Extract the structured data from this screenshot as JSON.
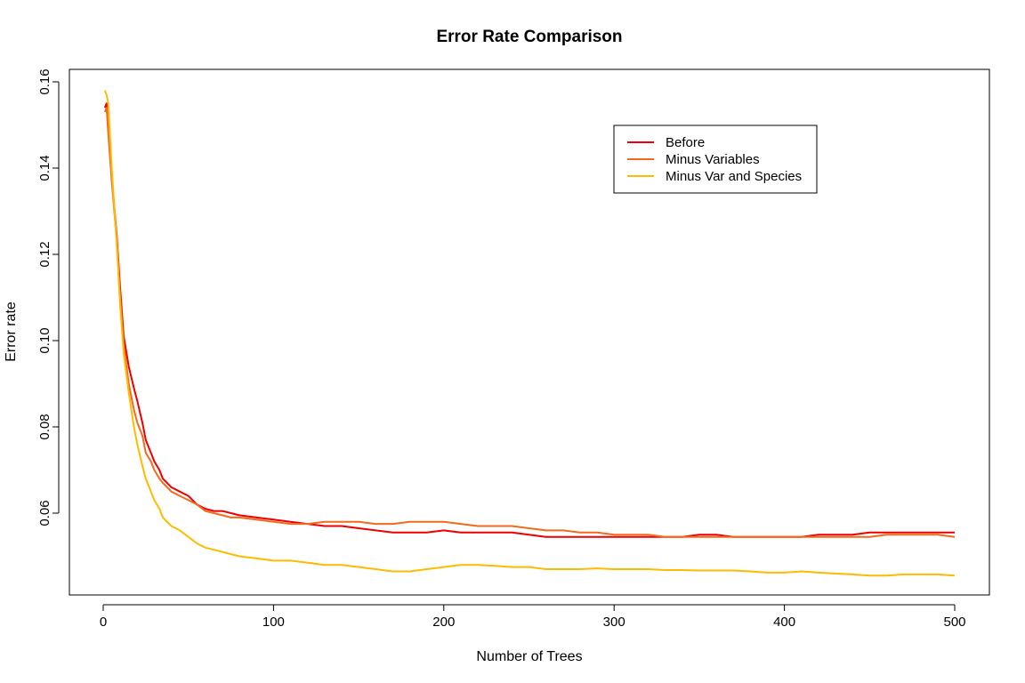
{
  "chart_data": {
    "type": "line",
    "title": "Error Rate Comparison",
    "xlabel": "Number of Trees",
    "ylabel": "Error rate",
    "xlim": [
      0,
      500
    ],
    "ylim": [
      0.044,
      0.161
    ],
    "xticks": [
      0,
      100,
      200,
      300,
      400,
      500
    ],
    "yticks": [
      0.06,
      0.08,
      0.1,
      0.12,
      0.14,
      0.16
    ],
    "xtick_labels": [
      "0",
      "100",
      "200",
      "300",
      "400",
      "500"
    ],
    "ytick_labels": [
      "0.06",
      "0.08",
      "0.10",
      "0.12",
      "0.14",
      "0.16"
    ],
    "grid": false,
    "legend_position": "top-right",
    "series": [
      {
        "name": "Before",
        "color": "#ee0000",
        "x": [
          1,
          2,
          3,
          5,
          8,
          10,
          12,
          15,
          18,
          20,
          23,
          25,
          28,
          30,
          33,
          35,
          40,
          45,
          50,
          55,
          60,
          65,
          70,
          75,
          80,
          90,
          100,
          110,
          120,
          130,
          140,
          150,
          160,
          170,
          180,
          190,
          200,
          210,
          220,
          230,
          240,
          250,
          260,
          270,
          280,
          290,
          300,
          310,
          320,
          330,
          340,
          350,
          360,
          370,
          380,
          390,
          400,
          410,
          420,
          430,
          440,
          450,
          460,
          470,
          480,
          490,
          500
        ],
        "y": [
          0.154,
          0.155,
          0.149,
          0.138,
          0.124,
          0.112,
          0.101,
          0.094,
          0.089,
          0.086,
          0.081,
          0.077,
          0.074,
          0.072,
          0.07,
          0.068,
          0.066,
          0.065,
          0.064,
          0.062,
          0.061,
          0.0605,
          0.0605,
          0.06,
          0.0595,
          0.059,
          0.0585,
          0.058,
          0.0575,
          0.057,
          0.057,
          0.0565,
          0.056,
          0.0555,
          0.0555,
          0.0555,
          0.056,
          0.0555,
          0.0555,
          0.0555,
          0.0555,
          0.055,
          0.0545,
          0.0545,
          0.0545,
          0.0545,
          0.0545,
          0.0545,
          0.0545,
          0.0545,
          0.0545,
          0.055,
          0.055,
          0.0545,
          0.0545,
          0.0545,
          0.0545,
          0.0545,
          0.055,
          0.055,
          0.055,
          0.0555,
          0.0555,
          0.0555,
          0.0555,
          0.0555,
          0.0555
        ]
      },
      {
        "name": "Minus Variables",
        "color": "#f26a1c",
        "x": [
          1,
          2,
          3,
          5,
          8,
          10,
          12,
          15,
          18,
          20,
          23,
          25,
          28,
          30,
          33,
          35,
          40,
          45,
          50,
          55,
          60,
          65,
          70,
          75,
          80,
          90,
          100,
          110,
          120,
          130,
          140,
          150,
          160,
          170,
          180,
          190,
          200,
          210,
          220,
          230,
          240,
          250,
          260,
          270,
          280,
          290,
          300,
          310,
          320,
          330,
          340,
          350,
          360,
          370,
          380,
          390,
          400,
          410,
          420,
          430,
          440,
          450,
          460,
          470,
          480,
          490,
          500
        ],
        "y": [
          0.153,
          0.154,
          0.148,
          0.137,
          0.123,
          0.11,
          0.099,
          0.09,
          0.084,
          0.081,
          0.078,
          0.074,
          0.072,
          0.07,
          0.068,
          0.067,
          0.065,
          0.064,
          0.063,
          0.062,
          0.0605,
          0.06,
          0.0595,
          0.059,
          0.059,
          0.0585,
          0.058,
          0.0575,
          0.0575,
          0.058,
          0.058,
          0.058,
          0.0575,
          0.0575,
          0.058,
          0.058,
          0.058,
          0.0575,
          0.057,
          0.057,
          0.057,
          0.0565,
          0.056,
          0.056,
          0.0555,
          0.0555,
          0.055,
          0.055,
          0.055,
          0.0545,
          0.0545,
          0.0545,
          0.0545,
          0.0545,
          0.0545,
          0.0545,
          0.0545,
          0.0545,
          0.0545,
          0.0545,
          0.0545,
          0.0545,
          0.055,
          0.055,
          0.055,
          0.055,
          0.0545
        ]
      },
      {
        "name": "Minus Var and Species",
        "color": "#ffbb00",
        "x": [
          1,
          2,
          3,
          5,
          8,
          10,
          12,
          15,
          18,
          20,
          23,
          25,
          28,
          30,
          33,
          35,
          40,
          45,
          50,
          55,
          60,
          65,
          70,
          75,
          80,
          90,
          100,
          110,
          120,
          130,
          140,
          150,
          160,
          170,
          180,
          190,
          200,
          210,
          220,
          230,
          240,
          250,
          260,
          270,
          280,
          290,
          300,
          310,
          320,
          330,
          340,
          350,
          360,
          370,
          380,
          390,
          400,
          410,
          420,
          430,
          440,
          450,
          460,
          470,
          480,
          490,
          500
        ],
        "y": [
          0.158,
          0.157,
          0.155,
          0.14,
          0.122,
          0.108,
          0.097,
          0.088,
          0.08,
          0.076,
          0.071,
          0.068,
          0.065,
          0.063,
          0.061,
          0.059,
          0.057,
          0.056,
          0.0545,
          0.053,
          0.052,
          0.0515,
          0.051,
          0.0505,
          0.05,
          0.0495,
          0.049,
          0.049,
          0.0485,
          0.048,
          0.048,
          0.0475,
          0.047,
          0.0465,
          0.0465,
          0.047,
          0.0475,
          0.048,
          0.048,
          0.0478,
          0.0475,
          0.0475,
          0.047,
          0.047,
          0.047,
          0.0472,
          0.047,
          0.047,
          0.047,
          0.0468,
          0.0468,
          0.0467,
          0.0467,
          0.0467,
          0.0465,
          0.0462,
          0.0462,
          0.0465,
          0.0462,
          0.046,
          0.0458,
          0.0455,
          0.0455,
          0.0458,
          0.0458,
          0.0458,
          0.0455
        ]
      }
    ]
  }
}
